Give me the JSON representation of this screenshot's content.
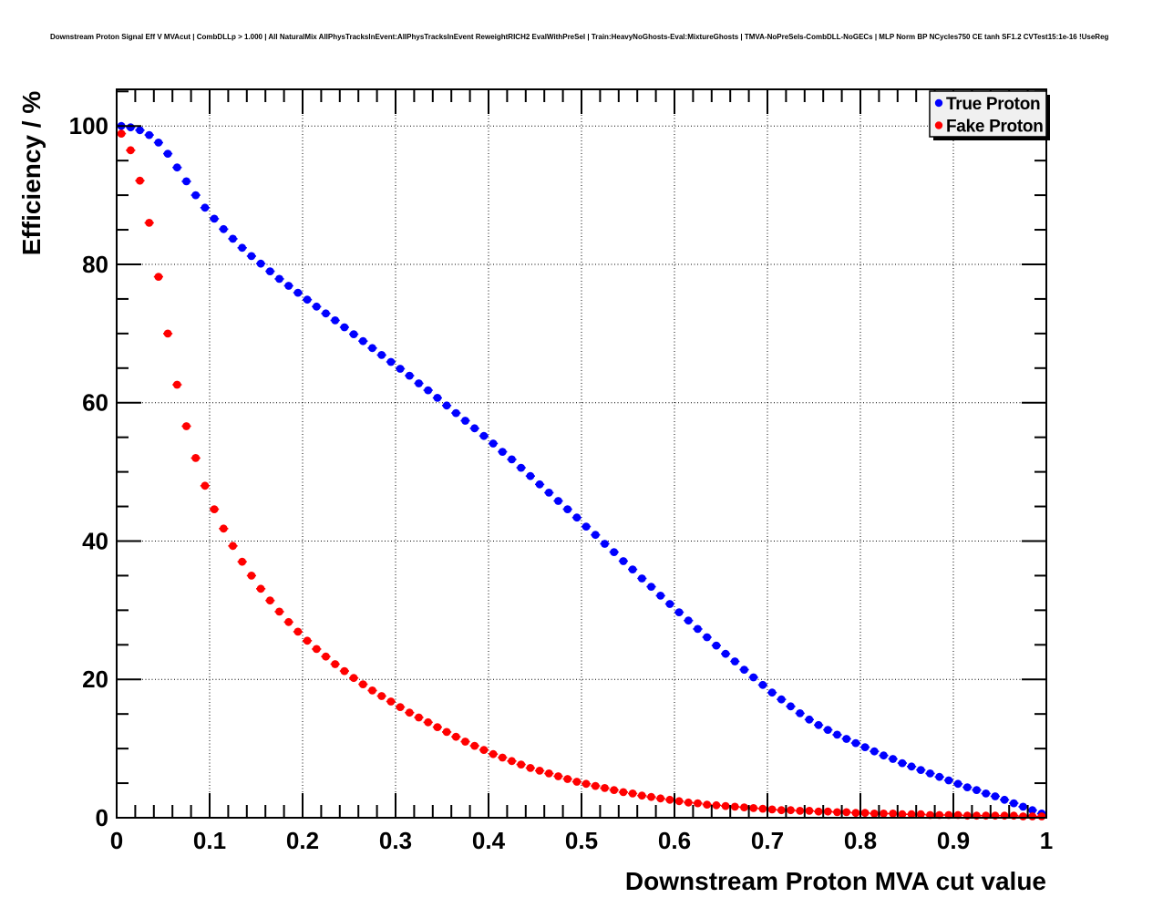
{
  "title": "Downstream Proton Signal Eff V MVAcut | CombDLLp > 1.000 | All NaturalMix AllPhysTracksInEvent:AllPhysTracksInEvent ReweightRICH2 EvalWithPreSel | Train:HeavyNoGhosts-Eval:MixtureGhosts | TMVA-NoPreSels-CombDLL-NoGECs | MLP Norm BP NCycles750 CE tanh SF1.2 CVTest15:1e-16 !UseReg",
  "legend": {
    "background": "#f0f0f0",
    "border": "#000000",
    "shadow": "#000000",
    "position": "top-right"
  },
  "chart_data": {
    "type": "scatter",
    "title": "Downstream Proton Signal Eff V MVAcut | CombDLLp > 1.000 | All NaturalMix AllPhysTracksInEvent:AllPhysTracksInEvent ReweightRICH2 EvalWithPreSel | Train:HeavyNoGhosts-Eval:MixtureGhosts | TMVA-NoPreSels-CombDLL-NoGECs | MLP Norm BP NCycles750 CE tanh SF1.2 CVTest15:1e-16 !UseReg",
    "xlabel": "Downstream Proton MVA cut value",
    "ylabel": "Efficiency / %",
    "xlim": [
      0,
      1
    ],
    "ylim": [
      0,
      105.3
    ],
    "grid": true,
    "grid_style": "dotted",
    "legend_position": "top-right",
    "x_major_ticks": [
      0,
      0.1,
      0.2,
      0.3,
      0.4,
      0.5,
      0.6,
      0.7,
      0.8,
      0.9,
      1
    ],
    "x_tick_labels": [
      "0",
      "0.1",
      "0.2",
      "0.3",
      "0.4",
      "0.5",
      "0.6",
      "0.7",
      "0.8",
      "0.9",
      "1"
    ],
    "x_minor_step": 0.02,
    "y_major_ticks": [
      0,
      20,
      40,
      60,
      80,
      100
    ],
    "y_tick_labels": [
      "0",
      "20",
      "40",
      "60",
      "80",
      "100"
    ],
    "y_minor_step": 5,
    "x_error": 0.005,
    "marker": "filled-circle",
    "x": [
      0.005,
      0.015,
      0.025,
      0.035,
      0.045,
      0.055,
      0.065,
      0.075,
      0.085,
      0.095,
      0.105,
      0.115,
      0.125,
      0.135,
      0.145,
      0.155,
      0.165,
      0.175,
      0.185,
      0.195,
      0.205,
      0.215,
      0.225,
      0.235,
      0.245,
      0.255,
      0.265,
      0.275,
      0.285,
      0.295,
      0.305,
      0.315,
      0.325,
      0.335,
      0.345,
      0.355,
      0.365,
      0.375,
      0.385,
      0.395,
      0.405,
      0.415,
      0.425,
      0.435,
      0.445,
      0.455,
      0.465,
      0.475,
      0.485,
      0.495,
      0.505,
      0.515,
      0.525,
      0.535,
      0.545,
      0.555,
      0.565,
      0.575,
      0.585,
      0.595,
      0.605,
      0.615,
      0.625,
      0.635,
      0.645,
      0.655,
      0.665,
      0.675,
      0.685,
      0.695,
      0.705,
      0.715,
      0.725,
      0.735,
      0.745,
      0.755,
      0.765,
      0.775,
      0.785,
      0.795,
      0.805,
      0.815,
      0.825,
      0.835,
      0.845,
      0.855,
      0.865,
      0.875,
      0.885,
      0.895,
      0.905,
      0.915,
      0.925,
      0.935,
      0.945,
      0.955,
      0.965,
      0.975,
      0.985,
      0.995
    ],
    "series": [
      {
        "name": "True Proton",
        "color": "#0000ff",
        "values": [
          100.0,
          99.8,
          99.4,
          98.7,
          97.6,
          96.0,
          94.0,
          92.0,
          90.0,
          88.2,
          86.6,
          85.1,
          83.7,
          82.4,
          81.2,
          80.1,
          79.0,
          77.9,
          76.9,
          75.9,
          74.9,
          73.9,
          72.9,
          71.9,
          70.9,
          69.9,
          68.9,
          67.9,
          66.9,
          65.9,
          64.9,
          63.9,
          62.8,
          61.8,
          60.7,
          59.6,
          58.5,
          57.4,
          56.3,
          55.2,
          54.1,
          52.9,
          51.8,
          50.6,
          49.4,
          48.2,
          47.0,
          45.8,
          44.6,
          43.4,
          42.1,
          40.9,
          39.6,
          38.4,
          37.1,
          35.9,
          34.6,
          33.4,
          32.1,
          30.9,
          29.7,
          28.5,
          27.3,
          26.1,
          24.9,
          23.7,
          22.6,
          21.4,
          20.3,
          19.2,
          18.1,
          17.1,
          16.1,
          15.1,
          14.2,
          13.4,
          12.7,
          12.0,
          11.4,
          10.8,
          10.2,
          9.6,
          9.0,
          8.5,
          7.9,
          7.4,
          6.9,
          6.4,
          5.9,
          5.4,
          4.9,
          4.4,
          4.0,
          3.5,
          3.1,
          2.6,
          2.1,
          1.6,
          1.1,
          0.6
        ]
      },
      {
        "name": "Fake Proton",
        "color": "#ff0000",
        "values": [
          98.9,
          96.5,
          92.1,
          86.0,
          78.2,
          70.0,
          62.6,
          56.6,
          52.0,
          48.0,
          44.6,
          41.8,
          39.3,
          37.0,
          35.0,
          33.1,
          31.4,
          29.8,
          28.3,
          26.9,
          25.6,
          24.4,
          23.3,
          22.2,
          21.2,
          20.2,
          19.3,
          18.4,
          17.6,
          16.8,
          16.0,
          15.2,
          14.5,
          13.8,
          13.1,
          12.4,
          11.7,
          11.0,
          10.4,
          9.8,
          9.2,
          8.7,
          8.2,
          7.7,
          7.2,
          6.8,
          6.4,
          6.0,
          5.6,
          5.2,
          4.9,
          4.6,
          4.3,
          4.0,
          3.7,
          3.5,
          3.2,
          3.0,
          2.8,
          2.6,
          2.4,
          2.2,
          2.1,
          1.9,
          1.8,
          1.7,
          1.6,
          1.5,
          1.4,
          1.3,
          1.2,
          1.1,
          1.1,
          1.0,
          1.0,
          0.9,
          0.9,
          0.8,
          0.8,
          0.7,
          0.7,
          0.6,
          0.6,
          0.6,
          0.5,
          0.5,
          0.5,
          0.4,
          0.4,
          0.4,
          0.4,
          0.3,
          0.3,
          0.3,
          0.3,
          0.3,
          0.3,
          0.2,
          0.2,
          0.2
        ]
      }
    ]
  }
}
